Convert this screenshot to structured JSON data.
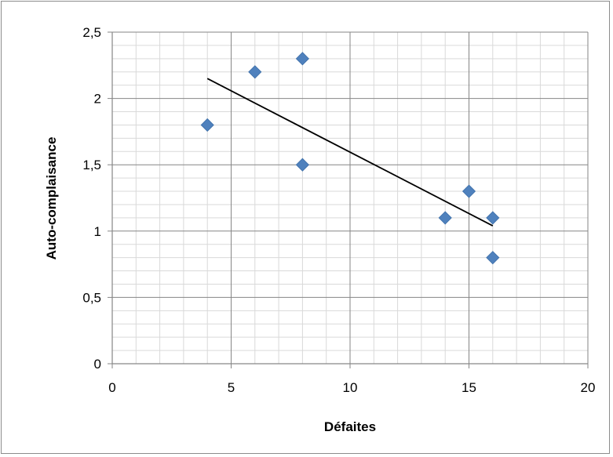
{
  "chart_data": {
    "type": "scatter",
    "title": "",
    "xlabel": "Défaites",
    "ylabel": "Auto-complaisance",
    "xlim": [
      0,
      20
    ],
    "ylim": [
      0,
      2.5
    ],
    "x_ticks": [
      0,
      5,
      10,
      15,
      20
    ],
    "x_tick_labels": [
      "0",
      "5",
      "10",
      "15",
      "20"
    ],
    "y_ticks": [
      0,
      0.5,
      1,
      1.5,
      2,
      2.5
    ],
    "y_tick_labels": [
      "0",
      "0,5",
      "1",
      "1,5",
      "2",
      "2,5"
    ],
    "grid": true,
    "legend": "none",
    "series": [
      {
        "marker": "diamond",
        "color": "#4f81bd",
        "points": [
          {
            "x": 4,
            "y": 1.8
          },
          {
            "x": 6,
            "y": 2.2
          },
          {
            "x": 8,
            "y": 2.3
          },
          {
            "x": 8,
            "y": 1.5
          },
          {
            "x": 14,
            "y": 1.1
          },
          {
            "x": 15,
            "y": 1.3
          },
          {
            "x": 16,
            "y": 1.1
          },
          {
            "x": 16,
            "y": 0.8
          }
        ]
      }
    ],
    "trendline": {
      "type": "linear",
      "color": "#000000",
      "points": [
        {
          "x": 4,
          "y": 2.15
        },
        {
          "x": 16,
          "y": 1.04
        }
      ]
    }
  }
}
